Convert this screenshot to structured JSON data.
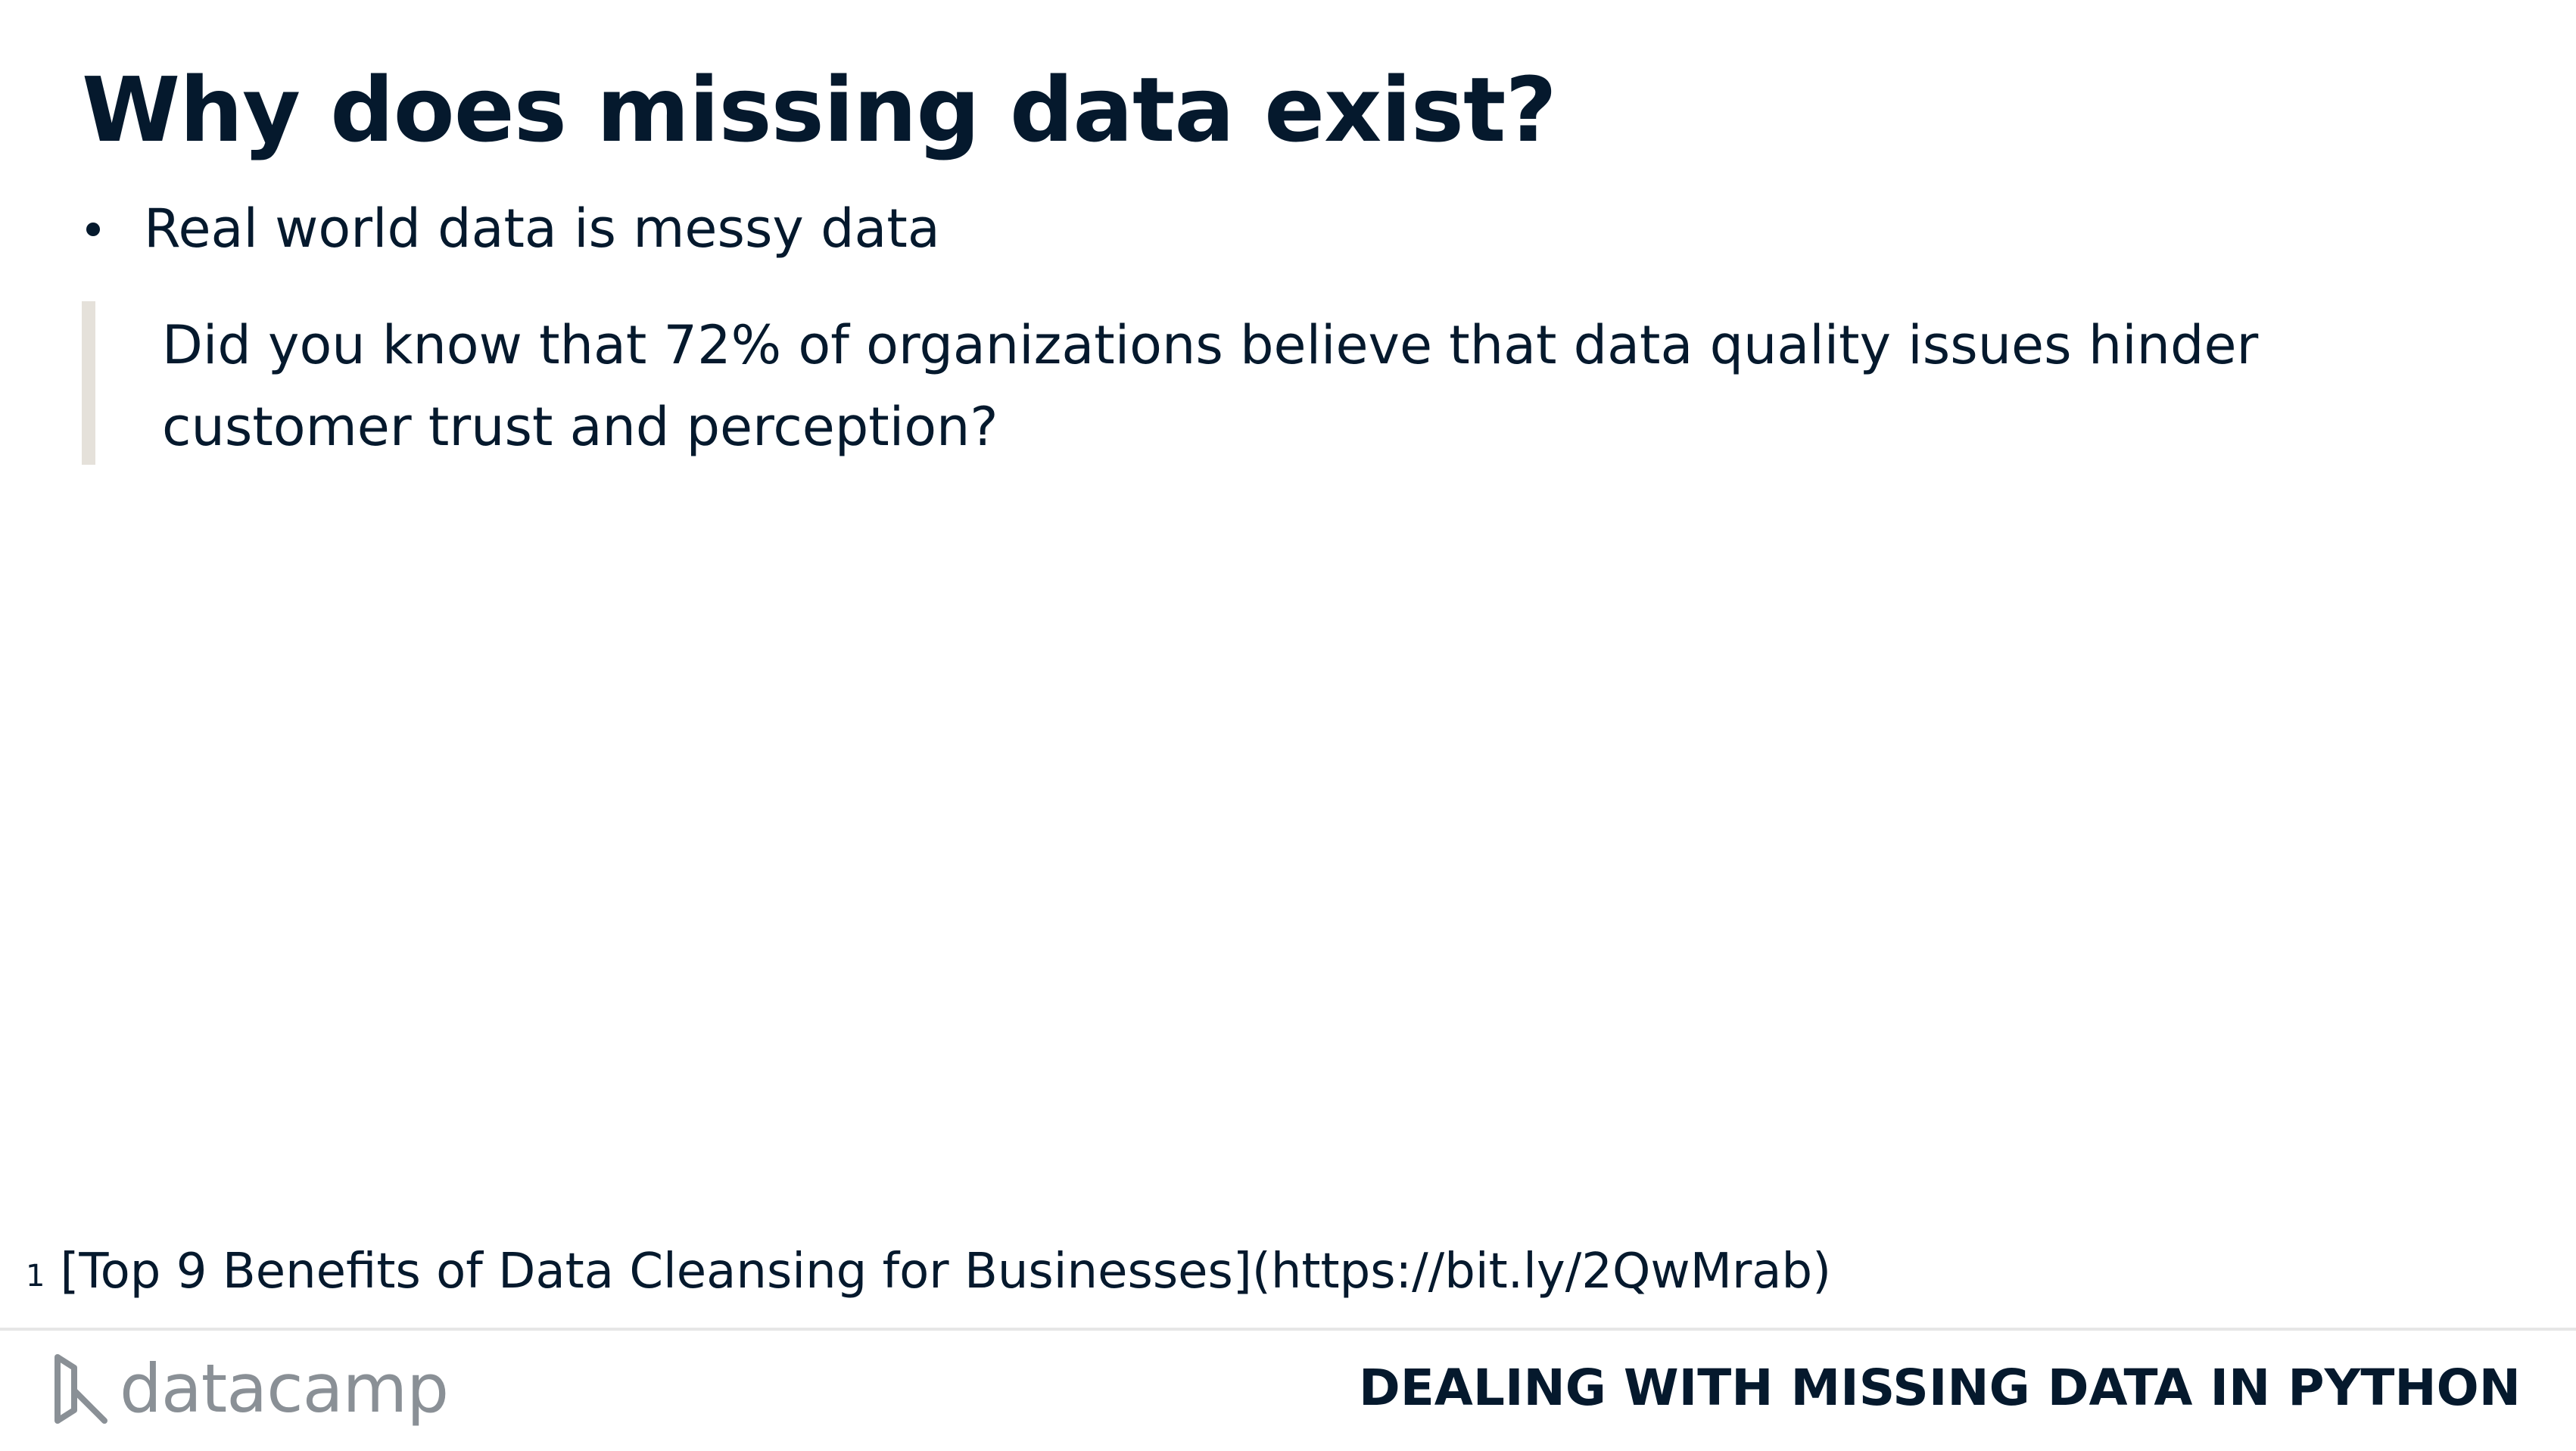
{
  "slide": {
    "title": "Why does missing data exist?",
    "bullets": [
      {
        "text": "Real world data is messy data"
      }
    ],
    "quote": "Did you know that 72% of organizations believe that data quality issues hinder customer trust and perception?",
    "footnote": {
      "marker": "1",
      "text": "[Top 9 Benefits of Data Cleansing for Businesses](https://bit.ly/2QwMrab)"
    }
  },
  "footer": {
    "logo_text": "datacamp",
    "logo_icon": "datacamp-logo-icon",
    "course_title": "DEALING WITH MISSING DATA IN PYTHON"
  },
  "colors": {
    "text": "#05192d",
    "quote_bar": "#e5e1da",
    "logo": "#8a9096",
    "divider": "#e6e6e6"
  }
}
